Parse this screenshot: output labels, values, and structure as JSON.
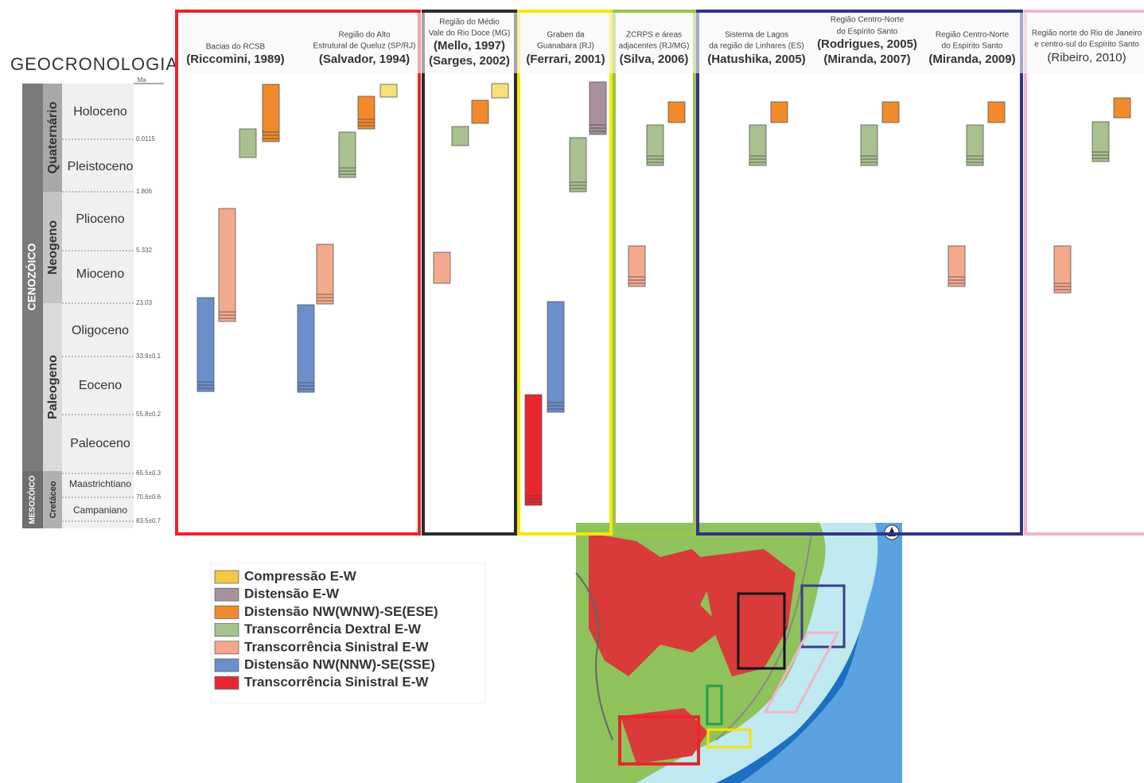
{
  "title": "GEOCRONOLOGIA",
  "unit": "Ma",
  "timescale": {
    "eras": [
      "CENOZÓICO",
      "MESOZÓICO"
    ],
    "periods": [
      "Quaternário",
      "Neogeno",
      "Paleogeno",
      "Cretáceo"
    ],
    "epochs": [
      "Holoceno",
      "Pleistoceno",
      "Plioceno",
      "Mioceno",
      "Oligoceno",
      "Eoceno",
      "Paleoceno",
      "Maastrichtiano",
      "Campaniano"
    ],
    "ages": [
      "0.0115",
      "1.806",
      "5.332",
      "23.03",
      "33.9±0.1",
      "55.8±0.2",
      "65.5±0.3",
      "70.6±0.6",
      "83.5±0.7"
    ]
  },
  "studies": [
    {
      "region": [
        "Bacias do RCSB"
      ],
      "citations": [
        "(Riccomini, 1989)"
      ]
    },
    {
      "region": [
        "Região do Alto",
        "Estrutural de Queluz (SP/RJ)"
      ],
      "citations": [
        "(Salvador, 1994)"
      ]
    },
    {
      "region": [
        "Região do Médio",
        "Vale do Rio Doce (MG)"
      ],
      "citations": [
        "(Mello, 1997)",
        "(Sarges, 2002)"
      ]
    },
    {
      "region": [
        "Graben da",
        "Guanabara (RJ)"
      ],
      "citations": [
        "(Ferrari, 2001)"
      ]
    },
    {
      "region": [
        "ZCRPS e áreas",
        "adjacentes (RJ/MG)"
      ],
      "citations": [
        "(Silva, 2006)"
      ]
    },
    {
      "region": [
        "Sistema de Lagos",
        "da região de Linhares (ES)"
      ],
      "citations": [
        "(Hatushika, 2005)"
      ]
    },
    {
      "region": [
        "Região Centro-Norte",
        "do Espírito Santo"
      ],
      "citations": [
        "(Rodrigues, 2005)",
        "(Miranda, 2007)"
      ]
    },
    {
      "region": [
        "Região Centro-Norte",
        "do Espírito Santo"
      ],
      "citations": [
        "(Miranda, 2009)"
      ]
    },
    {
      "region": [
        "Região norte do Rio de Janeiro",
        "e centro-sul do Espírito Santo"
      ],
      "citations": [
        "(Ribeiro, 2010)"
      ]
    }
  ],
  "legend": [
    "Compressão E-W",
    "Distensão E-W",
    "Distensão NW(WNW)-SE(ESE)",
    "Transcorrência Dextral E-W",
    "Transcorrência Sinistral E-W",
    "Distensão NW(NNW)-SE(SSE)",
    "Transcorrência Sinistral E-W"
  ]
}
